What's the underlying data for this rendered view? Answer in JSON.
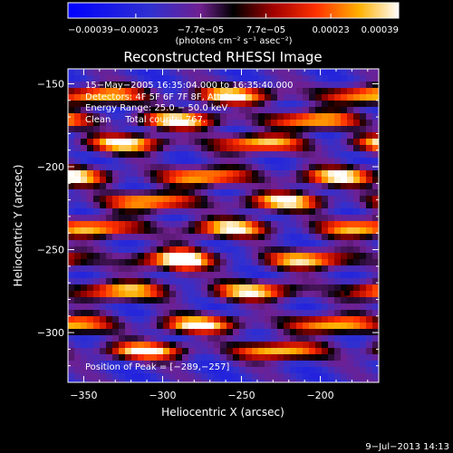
{
  "chart_data": {
    "type": "heatmap",
    "title": "Reconstructed RHESSI Image",
    "xlabel": "Heliocentric X (arcsec)",
    "ylabel": "Heliocentric Y (arcsec)",
    "xlim": [
      -360,
      -163
    ],
    "ylim": [
      -330,
      -141
    ],
    "xticks": [
      -350,
      -300,
      -250,
      -200
    ],
    "yticks": [
      -150,
      -200,
      -250,
      -300
    ],
    "xtick_labels": [
      "−350",
      "−300",
      "−250",
      "−200"
    ],
    "ytick_labels": [
      "−150",
      "−200",
      "−250",
      "−300"
    ],
    "colorbar": {
      "ticks": [
        -0.00039,
        -0.00023,
        -7.7e-05,
        7.7e-05,
        0.00023,
        0.00039
      ],
      "tick_labels": [
        "−0.00039",
        "−0.00023",
        "−7.7e−05",
        "7.7e−05",
        "0.00023",
        "0.00039"
      ],
      "unit": "(photons cm⁻² s⁻¹ asec⁻²)",
      "range": [
        -0.00039,
        0.00039
      ]
    },
    "annotations": {
      "time": "15−May−2005 16:35:04.000 to 16:35:40.000",
      "detectors": "Detectors: 4F 5F 6F 7F 8F, Att 0",
      "energy": "Energy Range: 25.0 − 50.0 keV",
      "clean": "Clean     Total counts: 767.",
      "peak": "Position of Peak = [−289,−257]"
    },
    "peak_position": [
      -289,
      -257
    ],
    "bright_bands_y": [
      -157,
      -172,
      -186,
      -206,
      -221,
      -237,
      -256,
      -275,
      -295,
      -311
    ],
    "footer": "9−Jul−2013 14:13"
  }
}
